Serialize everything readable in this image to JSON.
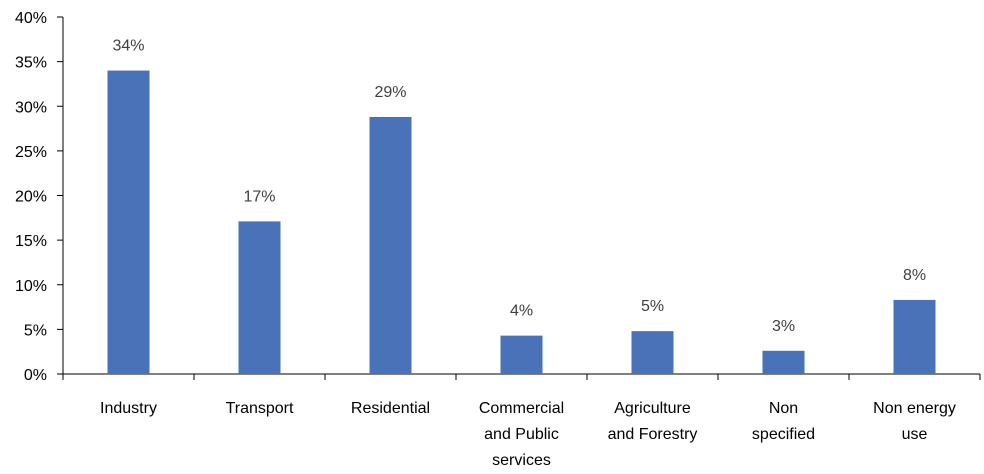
{
  "chart_data": {
    "type": "bar",
    "categories": [
      [
        "Industry"
      ],
      [
        "Transport"
      ],
      [
        "Residential"
      ],
      [
        "Commercial",
        "and Public",
        "services"
      ],
      [
        "Agriculture",
        "and Forestry"
      ],
      [
        "Non",
        "specified"
      ],
      [
        "Non energy",
        "use"
      ]
    ],
    "values": [
      34,
      17,
      29,
      4,
      5,
      3,
      8
    ],
    "bar_values": [
      34.0,
      17.1,
      28.8,
      4.3,
      4.8,
      2.6,
      8.3
    ],
    "data_labels": [
      "34%",
      "17%",
      "29%",
      "4%",
      "5%",
      "3%",
      "8%"
    ],
    "y_ticks": [
      "0%",
      "5%",
      "10%",
      "15%",
      "20%",
      "25%",
      "30%",
      "35%",
      "40%"
    ],
    "ylim": [
      0,
      40
    ],
    "ytick_step": 5,
    "grid": false,
    "legend": "none",
    "colors": {
      "bar": "#4a72b8",
      "axis": "#000000",
      "label": "#404040"
    }
  }
}
